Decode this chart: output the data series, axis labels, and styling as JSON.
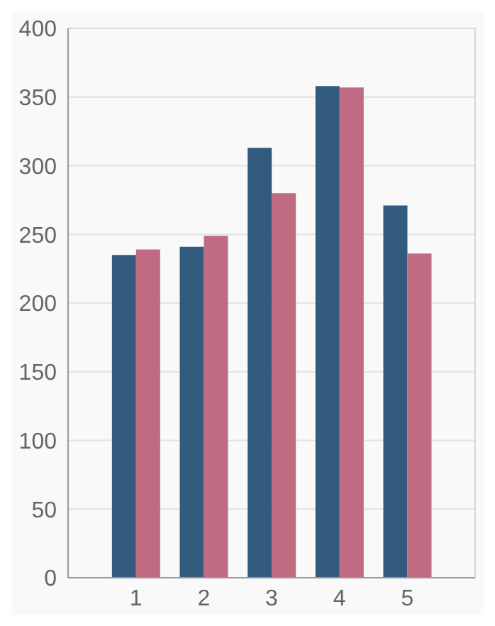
{
  "chart_data": {
    "type": "bar",
    "categories": [
      "1",
      "2",
      "3",
      "4",
      "5"
    ],
    "series": [
      {
        "color": "#325b7e",
        "values": [
          235,
          241,
          313,
          358,
          271
        ]
      },
      {
        "color": "#c06b81",
        "values": [
          239,
          249,
          280,
          357,
          236
        ]
      }
    ],
    "ylim": [
      0,
      400
    ],
    "yticks": [
      0,
      50,
      100,
      150,
      200,
      250,
      300,
      350,
      400
    ],
    "grid": "y",
    "legend": false
  }
}
